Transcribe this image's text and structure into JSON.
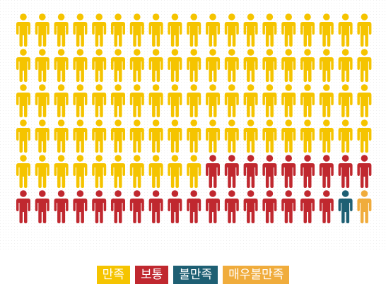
{
  "chart_data": {
    "type": "pictograph",
    "series": [
      {
        "name": "만족",
        "color": "#f5c400",
        "value": 86
      },
      {
        "name": "보통",
        "color": "#c0282f",
        "value": 26
      },
      {
        "name": "불만족",
        "color": "#1e5f73",
        "value": 1
      },
      {
        "name": "매우불만족",
        "color": "#f0ac3c",
        "value": 1
      }
    ]
  }
}
